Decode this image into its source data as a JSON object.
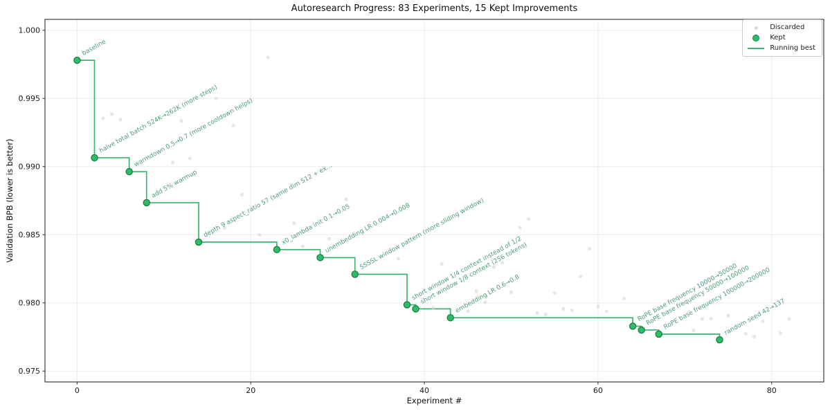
{
  "chart_data": {
    "type": "scatter",
    "title": "Autoresearch Progress: 83 Experiments, 15 Kept Improvements",
    "xlabel": "Experiment #",
    "ylabel": "Validation BPB (lower is better)",
    "xlim": [
      -3.7,
      86.0
    ],
    "ylim": [
      0.9742,
      1.0008
    ],
    "grid": true,
    "grid_color": "#ebebeb",
    "spine_color": "#2a2a2a",
    "annotation_color": "#4e9e78",
    "annotation_rotation_deg": -29,
    "legend_position": "upper right",
    "xticks": [
      {
        "value": 0,
        "label": "0"
      },
      {
        "value": 20,
        "label": "20"
      },
      {
        "value": 40,
        "label": "40"
      },
      {
        "value": 60,
        "label": "60"
      },
      {
        "value": 80,
        "label": "80"
      }
    ],
    "yticks": [
      {
        "value": 1.0,
        "label": "1.000"
      },
      {
        "value": 0.995,
        "label": "0.995"
      },
      {
        "value": 0.99,
        "label": "0.990"
      },
      {
        "value": 0.985,
        "label": "0.985"
      },
      {
        "value": 0.98,
        "label": "0.980"
      },
      {
        "value": 0.975,
        "label": "0.975"
      }
    ],
    "series": [
      {
        "name": "Discarded",
        "type": "scatter",
        "color": "#d5d5d5",
        "marker_radius": 2.6,
        "opacity": 0.6,
        "points": [
          [
            3,
            0.99355
          ],
          [
            4,
            0.99385
          ],
          [
            5,
            0.99345
          ],
          [
            11,
            0.9903
          ],
          [
            12,
            0.99335
          ],
          [
            13,
            0.9906
          ],
          [
            16,
            0.995
          ],
          [
            17,
            0.9855
          ],
          [
            18,
            0.993
          ],
          [
            19,
            0.98795
          ],
          [
            21,
            0.985
          ],
          [
            22,
            0.998
          ],
          [
            25,
            0.98585
          ],
          [
            26,
            0.98415
          ],
          [
            29,
            0.9847
          ],
          [
            31,
            0.9876
          ],
          [
            37,
            0.98325
          ],
          [
            41,
            0.97965
          ],
          [
            42,
            0.98285
          ],
          [
            45,
            0.9794
          ],
          [
            46,
            0.98085
          ],
          [
            47,
            0.98005
          ],
          [
            48,
            0.98262
          ],
          [
            49,
            0.98295
          ],
          [
            50,
            0.98078
          ],
          [
            51,
            0.98552
          ],
          [
            52,
            0.98615
          ],
          [
            53,
            0.97925
          ],
          [
            54,
            0.97915
          ],
          [
            55,
            0.98073
          ],
          [
            56,
            0.97955
          ],
          [
            57,
            0.97945
          ],
          [
            58,
            0.98195
          ],
          [
            59,
            0.98398
          ],
          [
            60,
            0.97974
          ],
          [
            61,
            0.97938
          ],
          [
            63,
            0.98032
          ],
          [
            71,
            0.97799
          ],
          [
            72,
            0.97882
          ],
          [
            73,
            0.97884
          ],
          [
            75,
            0.97907
          ],
          [
            77,
            0.97773
          ],
          [
            78,
            0.97752
          ],
          [
            79,
            0.97865
          ],
          [
            81,
            0.97779
          ],
          [
            82,
            0.97883
          ]
        ]
      },
      {
        "name": "Kept",
        "type": "scatter",
        "color": "#2dbd66",
        "edge_color": "#1e7e43",
        "marker_radius": 4.6,
        "points": [
          {
            "x": 0,
            "y": 0.9978,
            "label": "baseline"
          },
          {
            "x": 2,
            "y": 0.99065,
            "label": "halve total batch 524K→262K (more steps)"
          },
          {
            "x": 6,
            "y": 0.98963,
            "label": "warmdown 0.5→0.7 (more cooldown helps)"
          },
          {
            "x": 8,
            "y": 0.98735,
            "label": "add 5% warmup"
          },
          {
            "x": 14,
            "y": 0.98446,
            "label": "depth 9 aspect_ratio 57 (same dim 512 + ex…"
          },
          {
            "x": 23,
            "y": 0.98391,
            "label": "x0_lambda init 0.1→0.05"
          },
          {
            "x": 28,
            "y": 0.98332,
            "label": "unembedding LR 0.004→0.008"
          },
          {
            "x": 32,
            "y": 0.9821,
            "label": "SSSSL window pattern (more sliding window)"
          },
          {
            "x": 38,
            "y": 0.97986,
            "label": "short window 1/4 context instead of 1/2"
          },
          {
            "x": 39,
            "y": 0.97956,
            "label": "short window 1/8 context (256 tokens)"
          },
          {
            "x": 43,
            "y": 0.97891,
            "label": "embedding LR 0.6→0.8"
          },
          {
            "x": 64,
            "y": 0.97829,
            "label": "RoPE base frequency 10000→50000"
          },
          {
            "x": 65,
            "y": 0.97801,
            "label": "RoPE base frequency 50000→100000"
          },
          {
            "x": 67,
            "y": 0.97771,
            "label": "RoPE base frequency 100000→200000"
          },
          {
            "x": 74,
            "y": 0.97729,
            "label": "random seed 42→137"
          }
        ]
      },
      {
        "name": "Running best",
        "type": "step_post",
        "color": "#3cb371",
        "line_width": 1.7,
        "follows_series": "Kept"
      }
    ]
  }
}
